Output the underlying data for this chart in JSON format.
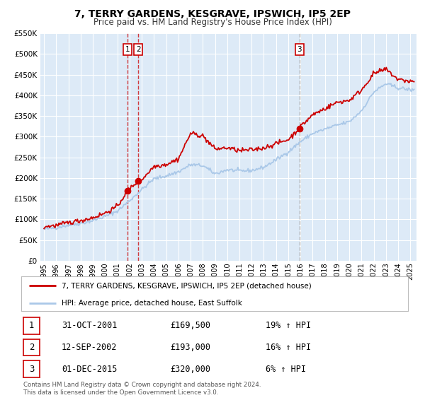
{
  "title": "7, TERRY GARDENS, KESGRAVE, IPSWICH, IP5 2EP",
  "subtitle": "Price paid vs. HM Land Registry's House Price Index (HPI)",
  "hpi_color": "#aac8e8",
  "price_color": "#cc0000",
  "plot_bg_color": "#ddeaf7",
  "grid_color": "#ffffff",
  "ylim": [
    0,
    550000
  ],
  "yticks": [
    0,
    50000,
    100000,
    150000,
    200000,
    250000,
    300000,
    350000,
    400000,
    450000,
    500000,
    550000
  ],
  "ytick_labels": [
    "£0",
    "£50K",
    "£100K",
    "£150K",
    "£200K",
    "£250K",
    "£300K",
    "£350K",
    "£400K",
    "£450K",
    "£500K",
    "£550K"
  ],
  "xlim_start": 1994.7,
  "xlim_end": 2025.5,
  "xtick_years": [
    1995,
    1996,
    1997,
    1998,
    1999,
    2000,
    2001,
    2002,
    2003,
    2004,
    2005,
    2006,
    2007,
    2008,
    2009,
    2010,
    2011,
    2012,
    2013,
    2014,
    2015,
    2016,
    2017,
    2018,
    2019,
    2020,
    2021,
    2022,
    2023,
    2024,
    2025
  ],
  "sale_markers": [
    {
      "date": 2001.83,
      "price": 169500,
      "label": "1"
    },
    {
      "date": 2002.71,
      "price": 193000,
      "label": "2"
    },
    {
      "date": 2015.92,
      "price": 320000,
      "label": "3"
    }
  ],
  "vline_12_color": "#cc0000",
  "vline_3_color": "#aaaaaa",
  "legend_line1": "7, TERRY GARDENS, KESGRAVE, IPSWICH, IP5 2EP (detached house)",
  "legend_line2": "HPI: Average price, detached house, East Suffolk",
  "table_rows": [
    {
      "num": "1",
      "date": "31-OCT-2001",
      "price": "£169,500",
      "hpi": "19% ↑ HPI"
    },
    {
      "num": "2",
      "date": "12-SEP-2002",
      "price": "£193,000",
      "hpi": "16% ↑ HPI"
    },
    {
      "num": "3",
      "date": "01-DEC-2015",
      "price": "£320,000",
      "hpi": "6% ↑ HPI"
    }
  ],
  "footer": "Contains HM Land Registry data © Crown copyright and database right 2024.\nThis data is licensed under the Open Government Licence v3.0."
}
